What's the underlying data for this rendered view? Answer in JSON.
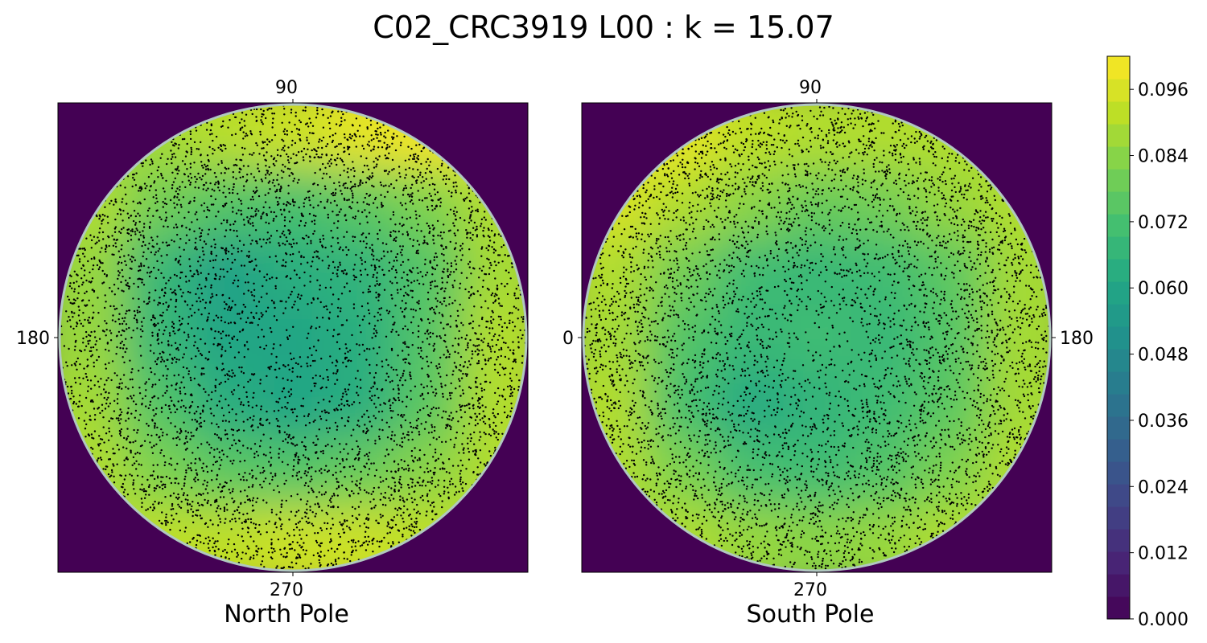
{
  "figure": {
    "title": "C02_CRC3919 L00 : k = 15.07"
  },
  "chart_data": {
    "type": "heatmap",
    "colormap": "viridis",
    "marker_color": "#000000",
    "outside_color": "#440154",
    "rim_color": "#b0c8c0",
    "panels": [
      {
        "xlabel": "North Pole",
        "ticks": {
          "top": "90",
          "bottom": "270",
          "left": "180",
          "right": ""
        },
        "grid_values": [
          [
            0.088,
            0.088,
            0.091,
            0.094,
            0.098,
            0.1,
            0.1
          ],
          [
            0.09,
            0.08,
            0.074,
            0.072,
            0.076,
            0.082,
            0.09
          ],
          [
            0.086,
            0.068,
            0.058,
            0.064,
            0.066,
            0.074,
            0.088
          ],
          [
            0.086,
            0.068,
            0.06,
            0.06,
            0.064,
            0.074,
            0.09
          ],
          [
            0.088,
            0.074,
            0.064,
            0.06,
            0.064,
            0.076,
            0.09
          ],
          [
            0.09,
            0.082,
            0.076,
            0.074,
            0.078,
            0.084,
            0.09
          ],
          [
            0.092,
            0.092,
            0.092,
            0.094,
            0.094,
            0.092,
            0.092
          ]
        ]
      },
      {
        "xlabel": "South Pole",
        "ticks": {
          "top": "90",
          "bottom": "270",
          "left": "0",
          "right": "180"
        },
        "grid_values": [
          [
            0.1,
            0.098,
            0.092,
            0.09,
            0.09,
            0.09,
            0.09
          ],
          [
            0.096,
            0.09,
            0.084,
            0.078,
            0.08,
            0.086,
            0.09
          ],
          [
            0.09,
            0.08,
            0.07,
            0.068,
            0.07,
            0.076,
            0.088
          ],
          [
            0.088,
            0.074,
            0.068,
            0.07,
            0.068,
            0.074,
            0.088
          ],
          [
            0.09,
            0.072,
            0.062,
            0.066,
            0.07,
            0.076,
            0.088
          ],
          [
            0.09,
            0.082,
            0.072,
            0.07,
            0.074,
            0.082,
            0.09
          ],
          [
            0.09,
            0.09,
            0.086,
            0.084,
            0.086,
            0.09,
            0.09
          ]
        ]
      }
    ],
    "colorbar": {
      "min": 0.0,
      "max": 0.102,
      "levels": 25,
      "ticks": [
        "0.000",
        "0.012",
        "0.024",
        "0.036",
        "0.048",
        "0.060",
        "0.072",
        "0.084",
        "0.096"
      ]
    }
  }
}
